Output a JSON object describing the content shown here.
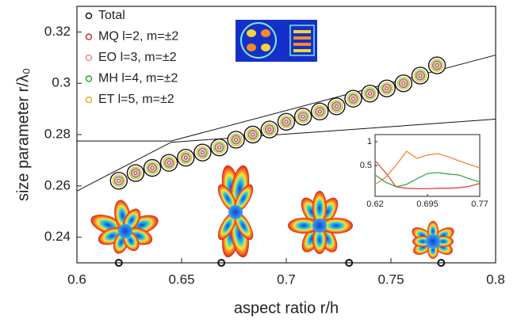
{
  "chart_data": [
    {
      "type": "scatter",
      "xlabel": "aspect ratio r/h",
      "ylabel": "size parameter r/λ₀",
      "xlim": [
        0.6,
        0.8
      ],
      "xticks": [
        0.6,
        0.65,
        0.7,
        0.75,
        0.8
      ],
      "ylim": [
        0.23,
        0.33
      ],
      "yticks": [
        0.24,
        0.26,
        0.28,
        0.3,
        0.32
      ],
      "x": [
        0.62,
        0.628,
        0.636,
        0.644,
        0.652,
        0.66,
        0.668,
        0.676,
        0.684,
        0.692,
        0.7,
        0.708,
        0.716,
        0.724,
        0.732,
        0.74,
        0.748,
        0.756,
        0.764,
        0.772
      ],
      "series": [
        {
          "name": "Total",
          "color": "#111111",
          "values": [
            0.262,
            0.265,
            0.267,
            0.269,
            0.271,
            0.273,
            0.275,
            0.278,
            0.28,
            0.282,
            0.285,
            0.287,
            0.289,
            0.291,
            0.294,
            0.296,
            0.298,
            0.3,
            0.303,
            0.307
          ]
        },
        {
          "name": "MQ l=2, m=±2",
          "color": "#c8283c",
          "values": [
            0.262,
            0.265,
            0.267,
            0.269,
            0.271,
            0.273,
            0.275,
            0.278,
            0.28,
            0.282,
            0.285,
            0.287,
            0.289,
            0.291,
            0.294,
            0.296,
            0.298,
            0.3,
            0.303,
            0.307
          ]
        },
        {
          "name": "EO l=3, m=±2",
          "color": "#f08a8a",
          "values": [
            0.262,
            0.265,
            0.267,
            0.269,
            0.271,
            0.273,
            0.275,
            0.278,
            0.28,
            0.282,
            0.285,
            0.287,
            0.289,
            0.291,
            0.294,
            0.296,
            0.298,
            0.3,
            0.303,
            0.307
          ]
        },
        {
          "name": "MH l=4, m=±2",
          "color": "#2ca02c",
          "values": [
            0.262,
            0.265,
            0.267,
            0.269,
            0.271,
            0.273,
            0.275,
            0.278,
            0.28,
            0.282,
            0.285,
            0.287,
            0.289,
            0.291,
            0.294,
            0.296,
            0.298,
            0.3,
            0.303,
            0.307
          ]
        },
        {
          "name": "ET l=5, m=±2",
          "color": "#f5a623",
          "values": [
            0.262,
            0.265,
            0.267,
            0.269,
            0.271,
            0.273,
            0.275,
            0.278,
            0.28,
            0.282,
            0.285,
            0.287,
            0.289,
            0.291,
            0.294,
            0.296,
            0.298,
            0.3,
            0.303,
            0.307
          ]
        }
      ],
      "curves": [
        {
          "color": "#111111",
          "x": [
            0.6,
            0.645,
            0.8
          ],
          "y": [
            0.2775,
            0.2775,
            0.311
          ]
        },
        {
          "color": "#111111",
          "x": [
            0.6,
            0.645,
            0.8
          ],
          "y": [
            0.258,
            0.277,
            0.286
          ]
        }
      ],
      "markers": {
        "color": "#111111",
        "x": [
          0.62,
          0.669,
          0.73,
          0.774
        ],
        "y": [
          0.23,
          0.23,
          0.23,
          0.23
        ]
      }
    },
    {
      "type": "line",
      "xlim": [
        0.62,
        0.77
      ],
      "xticks": [
        0.62,
        0.695,
        0.77
      ],
      "ylim": [
        -0.15,
        1.15
      ],
      "yticks": [
        0.5,
        1
      ],
      "x": [
        0.62,
        0.635,
        0.65,
        0.665,
        0.68,
        0.695,
        0.71,
        0.725,
        0.74,
        0.755,
        0.77
      ],
      "series": [
        {
          "color": "#e8413c",
          "values": [
            0.6,
            0.35,
            0.05,
            0.02,
            0.01,
            0.01,
            0.02,
            0.02,
            0.03,
            0.06,
            0.12
          ]
        },
        {
          "color": "#f5823c",
          "values": [
            0.1,
            0.25,
            0.5,
            0.8,
            0.65,
            0.72,
            0.75,
            0.68,
            0.6,
            0.52,
            0.45
          ]
        },
        {
          "color": "#3aa64a",
          "values": [
            0.3,
            0.15,
            0.05,
            0.1,
            0.22,
            0.33,
            0.35,
            0.32,
            0.3,
            0.22,
            0.15
          ]
        }
      ]
    }
  ]
}
